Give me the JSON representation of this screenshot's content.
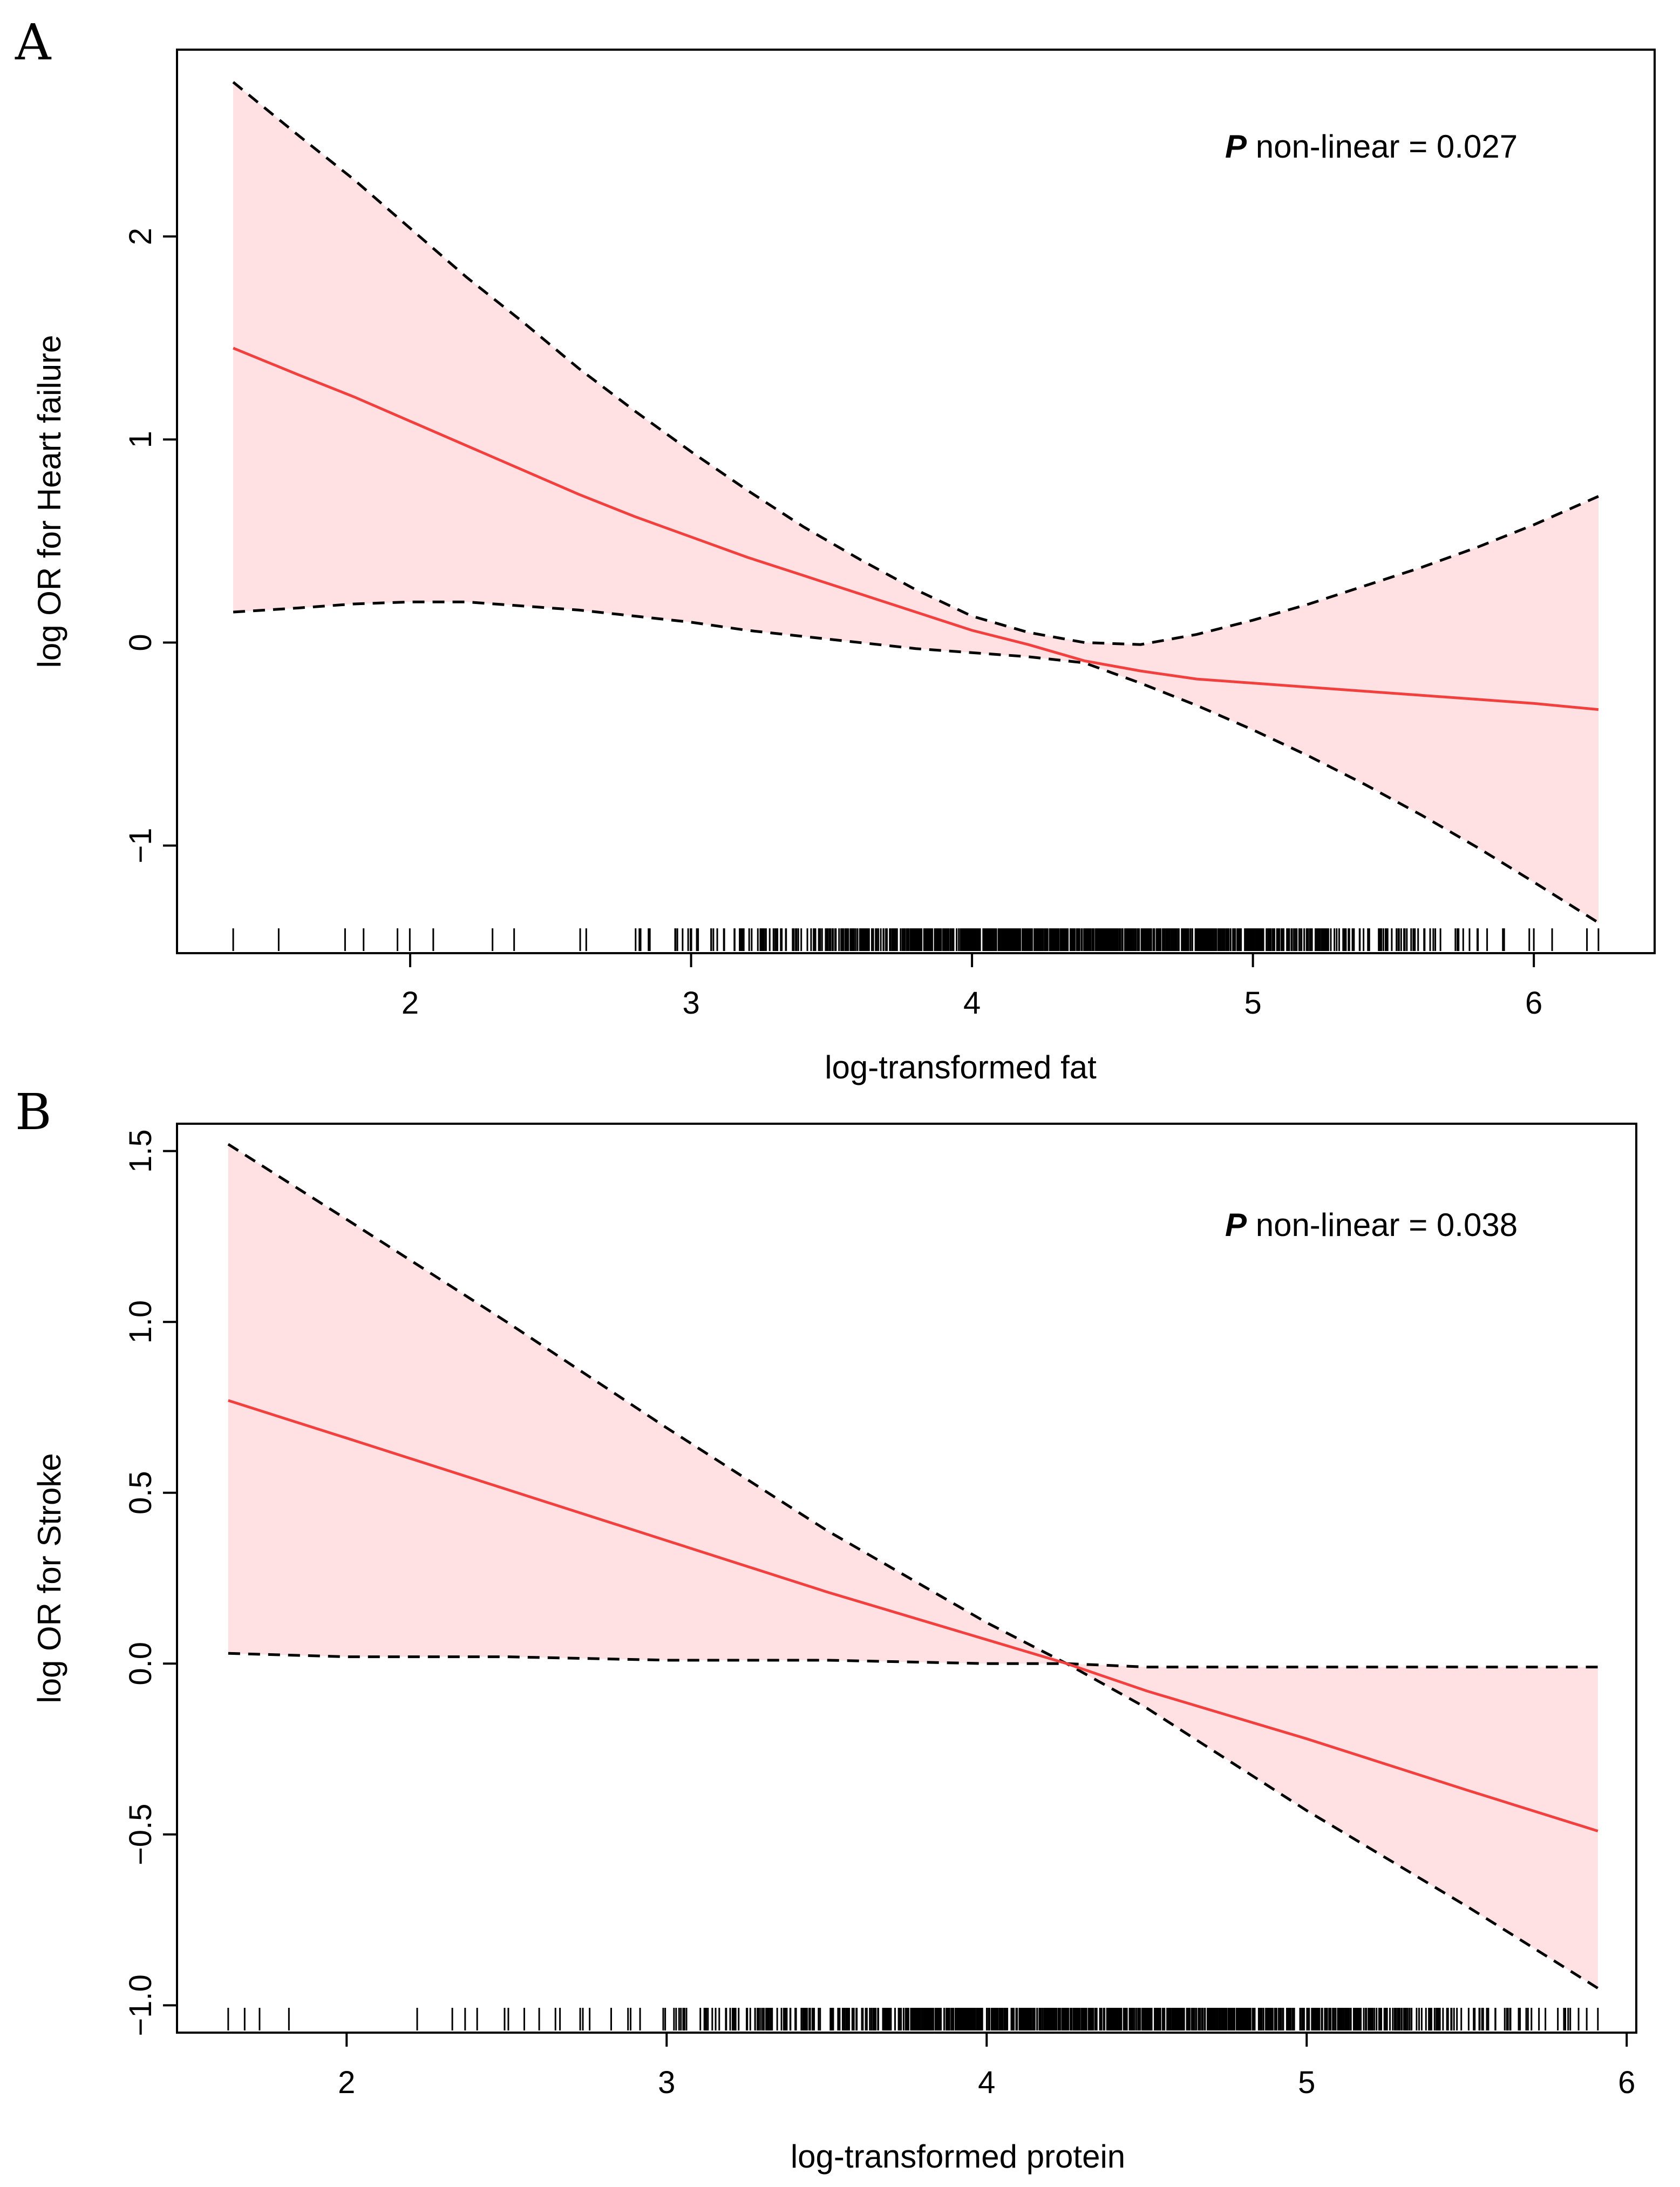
{
  "chart_data": [
    {
      "panel": "A",
      "type": "line",
      "xlabel": "log-transformed fat",
      "ylabel": "log OR for Heart failure",
      "xlim": [
        1.17,
        6.43
      ],
      "ylim": [
        -1.53,
        2.92
      ],
      "xticks": [
        2,
        3,
        4,
        5,
        6
      ],
      "yticks": [
        -1,
        0,
        1,
        2
      ],
      "x_tick_labels": [
        "2",
        "3",
        "4",
        "5",
        "6"
      ],
      "y_tick_labels": [
        "−1",
        "0",
        "1",
        "2"
      ],
      "annotation": {
        "p_label": "P",
        "text": " non-linear = 0.027"
      },
      "x": [
        1.37,
        1.6,
        1.8,
        2.0,
        2.2,
        2.4,
        2.6,
        2.8,
        3.0,
        3.2,
        3.4,
        3.6,
        3.8,
        4.0,
        4.2,
        4.4,
        4.6,
        4.8,
        5.0,
        5.2,
        5.4,
        5.6,
        5.8,
        6.0,
        6.23
      ],
      "series": [
        {
          "name": "estimate",
          "style": "solid",
          "color": "#f2403f",
          "values": [
            1.45,
            1.32,
            1.21,
            1.09,
            0.97,
            0.85,
            0.73,
            0.62,
            0.52,
            0.42,
            0.33,
            0.24,
            0.15,
            0.06,
            -0.01,
            -0.09,
            -0.14,
            -0.18,
            -0.2,
            -0.22,
            -0.24,
            -0.26,
            -0.28,
            -0.3,
            -0.33
          ]
        },
        {
          "name": "upper 95% CI",
          "style": "dashed",
          "color": "#000000",
          "values": [
            2.76,
            2.5,
            2.28,
            2.04,
            1.8,
            1.58,
            1.35,
            1.14,
            0.94,
            0.75,
            0.57,
            0.41,
            0.26,
            0.13,
            0.05,
            0.0,
            -0.01,
            0.04,
            0.11,
            0.19,
            0.28,
            0.37,
            0.47,
            0.58,
            0.72
          ]
        },
        {
          "name": "lower 95% CI",
          "style": "dashed",
          "color": "#000000",
          "values": [
            0.15,
            0.17,
            0.19,
            0.2,
            0.2,
            0.18,
            0.16,
            0.13,
            0.1,
            0.06,
            0.03,
            0.0,
            -0.03,
            -0.05,
            -0.07,
            -0.1,
            -0.2,
            -0.31,
            -0.43,
            -0.56,
            -0.7,
            -0.85,
            -1.01,
            -1.18,
            -1.38
          ]
        }
      ],
      "rug_range": [
        1.37,
        6.23
      ]
    },
    {
      "panel": "B",
      "type": "line",
      "xlabel": "log-transformed protein",
      "ylabel": "log OR for Stroke",
      "xlim": [
        1.47,
        6.03
      ],
      "ylim": [
        -1.08,
        1.58
      ],
      "xticks": [
        2,
        3,
        4,
        5,
        6
      ],
      "yticks": [
        -1.0,
        -0.5,
        0.0,
        0.5,
        1.0,
        1.5
      ],
      "x_tick_labels": [
        "2",
        "3",
        "4",
        "5",
        "6"
      ],
      "y_tick_labels": [
        "−1.0",
        "−0.5",
        "0.0",
        "0.5",
        "1.0",
        "1.5"
      ],
      "annotation": {
        "p_label": "P",
        "text": " non-linear = 0.038"
      },
      "x": [
        1.63,
        2.0,
        2.5,
        3.0,
        3.5,
        4.0,
        4.25,
        4.5,
        5.0,
        5.5,
        5.91
      ],
      "series": [
        {
          "name": "estimate",
          "style": "solid",
          "color": "#f2403f",
          "values": [
            0.77,
            0.66,
            0.51,
            0.36,
            0.21,
            0.07,
            0.0,
            -0.08,
            -0.22,
            -0.37,
            -0.49
          ]
        },
        {
          "name": "upper 95% CI",
          "style": "dashed",
          "color": "#000000",
          "values": [
            1.52,
            1.3,
            1.0,
            0.69,
            0.39,
            0.12,
            0.0,
            -0.13,
            -0.43,
            -0.71,
            -0.95
          ]
        },
        {
          "name": "lower 95% CI",
          "style": "dashed",
          "color": "#000000",
          "values": [
            0.03,
            0.02,
            0.02,
            0.01,
            0.01,
            0.0,
            0.0,
            -0.01,
            -0.01,
            -0.01,
            -0.01
          ]
        }
      ],
      "rug_range": [
        1.63,
        5.91
      ]
    }
  ]
}
